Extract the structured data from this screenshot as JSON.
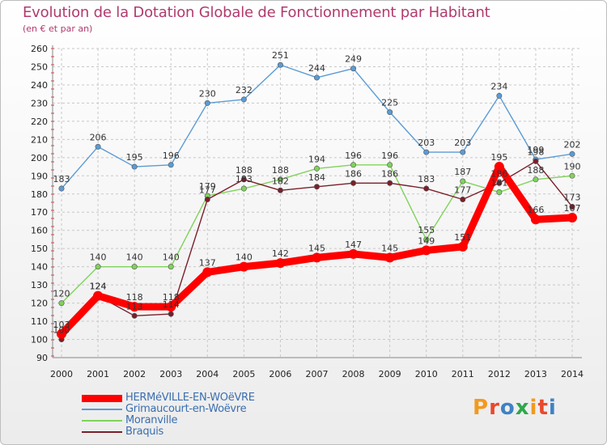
{
  "header": {
    "title": "Evolution de la Dotation Globale de Fonctionnement par Habitant",
    "subtitle": "(en € et par an)"
  },
  "logo": {
    "text": "Proxiti",
    "colors": [
      "#f29a1f",
      "#e84a2d",
      "#3f82c4",
      "#2ea84a",
      "#f29a1f",
      "#e84a2d",
      "#3f82c4"
    ]
  },
  "chart_data": {
    "type": "line",
    "title": "Evolution de la Dotation Globale de Fonctionnement par Habitant",
    "subtitle": "(en € et par an)",
    "xlabel": "",
    "ylabel": "",
    "ylim": [
      90,
      260
    ],
    "y_ticks": [
      90,
      100,
      110,
      120,
      130,
      140,
      150,
      160,
      170,
      180,
      190,
      200,
      210,
      220,
      230,
      240,
      250,
      260
    ],
    "x": [
      "2000",
      "2001",
      "2002",
      "2003",
      "2004",
      "2005",
      "2006",
      "2007",
      "2008",
      "2009",
      "2010",
      "2011",
      "2012",
      "2013",
      "2014"
    ],
    "grid": true,
    "legend_position": "bottom-left",
    "series": [
      {
        "name": "HERMéVILLE-EN-WOëVRE",
        "color": "#ff0000",
        "values": [
          103,
          124,
          118,
          118,
          137,
          140,
          142,
          145,
          147,
          145,
          149,
          151,
          195,
          166,
          167
        ],
        "labels": [
          "103",
          "124",
          "118",
          "118",
          "137",
          "140",
          "142",
          "145",
          "147",
          "145",
          "149",
          "151",
          "195",
          "166",
          "167"
        ]
      },
      {
        "name": "Grimaucourt-en-Woëvre",
        "color": "#5b9bd5",
        "values": [
          183,
          206,
          195,
          196,
          230,
          232,
          251,
          244,
          249,
          225,
          203,
          203,
          234,
          199,
          202
        ],
        "labels": [
          "183",
          "206",
          "195",
          "196",
          "230",
          "232",
          "251",
          "244",
          "249",
          "225",
          "203",
          "203",
          "234",
          "199",
          "202"
        ]
      },
      {
        "name": "Moranville",
        "color": "#7fd35a",
        "values": [
          120,
          140,
          140,
          140,
          179,
          183,
          188,
          194,
          196,
          196,
          155,
          187,
          181,
          188,
          190
        ],
        "labels": [
          "120",
          "140",
          "140",
          "140",
          "179",
          "183",
          "188",
          "194",
          "196",
          "196",
          "155",
          "187",
          "181",
          "188",
          "190"
        ]
      },
      {
        "name": "Braquis",
        "color": "#7a1f2b",
        "values": [
          100,
          124,
          113,
          114,
          177,
          188,
          182,
          184,
          186,
          186,
          183,
          177,
          186,
          198,
          173
        ],
        "labels": [
          "100",
          "124",
          "113",
          "114",
          "177",
          "188",
          "182",
          "184",
          "186",
          "186",
          "183",
          "177",
          "186",
          "198",
          "173"
        ]
      }
    ]
  }
}
